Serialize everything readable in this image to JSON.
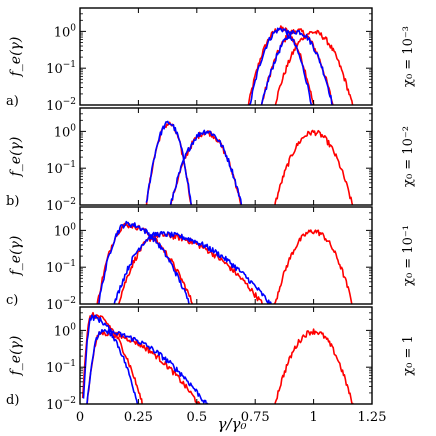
{
  "figure": {
    "xlabel": "γ/γ₀",
    "ylabel": "f_e(γ)",
    "x_tick_labels": [
      "0",
      "0.25",
      "0.5",
      "0.75",
      "1",
      "1.25"
    ],
    "y_tick_labels": [
      {
        "base": "10",
        "exp": "0"
      },
      {
        "base": "10",
        "exp": "−1"
      },
      {
        "base": "10",
        "exp": "−2"
      }
    ]
  },
  "chart_data": [
    {
      "type": "line",
      "panel_label": "a)",
      "side_label": "χ₀ = 10⁻³",
      "xlim": [
        0,
        1.25
      ],
      "ylim": [
        0.01,
        3
      ],
      "yscale": "log",
      "xlabel": "γ/γ₀",
      "ylabel": "f_e(γ)",
      "series": [
        {
          "color": "#ff0000",
          "peaks": [
            {
              "center": 0.86,
              "sigma": 0.045,
              "height": 1.2
            },
            {
              "center": 0.93,
              "sigma": 0.05,
              "height": 1.05
            },
            {
              "center": 1.0,
              "sigma": 0.055,
              "height": 0.95
            }
          ]
        },
        {
          "color": "#0000ff",
          "peaks": [
            {
              "center": 0.86,
              "sigma": 0.043,
              "height": 1.15
            },
            {
              "center": 0.93,
              "sigma": 0.05,
              "height": 1.0
            }
          ]
        }
      ]
    },
    {
      "type": "line",
      "panel_label": "b)",
      "side_label": "χ₀ = 10⁻²",
      "xlim": [
        0,
        1.25
      ],
      "ylim": [
        0.01,
        3
      ],
      "yscale": "log",
      "xlabel": "",
      "ylabel": "f_e(γ)",
      "series": [
        {
          "color": "#ff0000",
          "peaks": [
            {
              "center": 0.38,
              "sigma": 0.03,
              "height": 1.6
            },
            {
              "center": 0.54,
              "sigma": 0.05,
              "height": 0.95
            },
            {
              "center": 1.0,
              "sigma": 0.055,
              "height": 0.95
            }
          ]
        },
        {
          "color": "#0000ff",
          "peaks": [
            {
              "center": 0.38,
              "sigma": 0.03,
              "height": 1.7
            },
            {
              "center": 0.54,
              "sigma": 0.05,
              "height": 1.0
            }
          ]
        }
      ]
    },
    {
      "type": "line",
      "panel_label": "c)",
      "side_label": "χ₀ = 10⁻¹",
      "xlim": [
        0,
        1.25
      ],
      "ylim": [
        0.01,
        3
      ],
      "yscale": "log",
      "xlabel": "",
      "ylabel": "f_e(γ)",
      "series": [
        {
          "color": "#ff0000",
          "peaks": [
            {
              "center": 0.2,
              "sigma": 0.04,
              "sigma_right": 0.09,
              "height": 1.4
            },
            {
              "center": 0.34,
              "sigma": 0.06,
              "sigma_right": 0.15,
              "height": 0.75
            },
            {
              "center": 1.0,
              "sigma": 0.055,
              "height": 0.95
            }
          ]
        },
        {
          "color": "#0000ff",
          "peaks": [
            {
              "center": 0.2,
              "sigma": 0.038,
              "sigma_right": 0.085,
              "height": 1.5
            },
            {
              "center": 0.34,
              "sigma": 0.065,
              "sigma_right": 0.16,
              "height": 0.8
            }
          ]
        }
      ]
    },
    {
      "type": "line",
      "panel_label": "d)",
      "side_label": "χ₀ = 1",
      "xlim": [
        0,
        1.25
      ],
      "ylim": [
        0.01,
        3
      ],
      "yscale": "log",
      "xlabel": "γ/γ₀",
      "ylabel": "f_e(γ)",
      "series": [
        {
          "color": "#ff0000",
          "peaks": [
            {
              "center": 0.05,
              "sigma": 0.012,
              "sigma_right": 0.065,
              "height": 2.6
            },
            {
              "center": 0.09,
              "sigma": 0.02,
              "sigma_right": 0.14,
              "height": 0.85
            },
            {
              "center": 1.0,
              "sigma": 0.055,
              "height": 0.95
            }
          ]
        },
        {
          "color": "#0000ff",
          "peaks": [
            {
              "center": 0.05,
              "sigma": 0.011,
              "sigma_right": 0.06,
              "height": 2.3
            },
            {
              "center": 0.09,
              "sigma": 0.02,
              "sigma_right": 0.15,
              "height": 0.9
            }
          ]
        }
      ]
    }
  ]
}
